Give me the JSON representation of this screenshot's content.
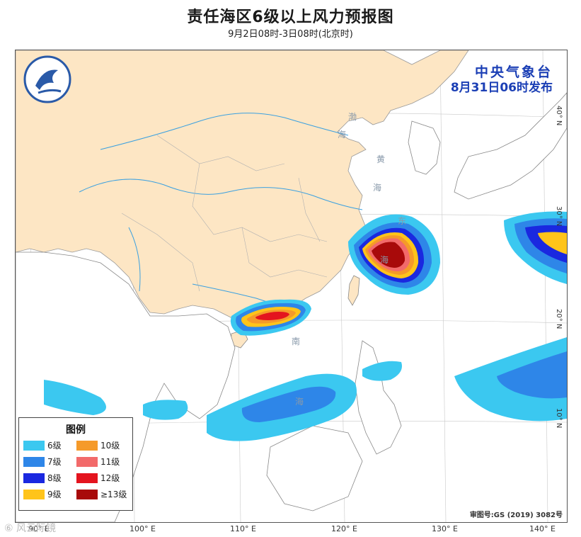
{
  "title": "责任海区6级以上风力预报图",
  "subtitle": "9月2日08时-3日08时(北京时)",
  "publisher": {
    "name": "中央气象台",
    "time": "8月31日06时发布"
  },
  "review_number": "审图号:GS (2019) 3082号",
  "watermark": "⑥ 风云际镜",
  "legend": {
    "title": "图例",
    "items": [
      {
        "label": "6级",
        "color": "#3bc8f0"
      },
      {
        "label": "10级",
        "color": "#f59a2a"
      },
      {
        "label": "7级",
        "color": "#2e86e8"
      },
      {
        "label": "11级",
        "color": "#f26a6a"
      },
      {
        "label": "8级",
        "color": "#1a28e0"
      },
      {
        "label": "12级",
        "color": "#e4141e"
      },
      {
        "label": "9级",
        "color": "#ffc41a"
      },
      {
        "label": "≥13级",
        "color": "#a80a0a"
      }
    ]
  },
  "longitude_labels": [
    "90° E",
    "100° E",
    "110° E",
    "120° E",
    "130° E",
    "140° E"
  ],
  "latitude_labels": [
    "40° N",
    "30° N",
    "20° N",
    "10° N"
  ],
  "sea_labels": [
    "渤",
    "海",
    "黄",
    "海",
    "东",
    "海",
    "南",
    "海"
  ],
  "colors": {
    "land": "#fde6c4",
    "sea": "#ffffff",
    "border": "#888888",
    "river": "#3aa0e0",
    "publisher": "#1b3fb5"
  }
}
